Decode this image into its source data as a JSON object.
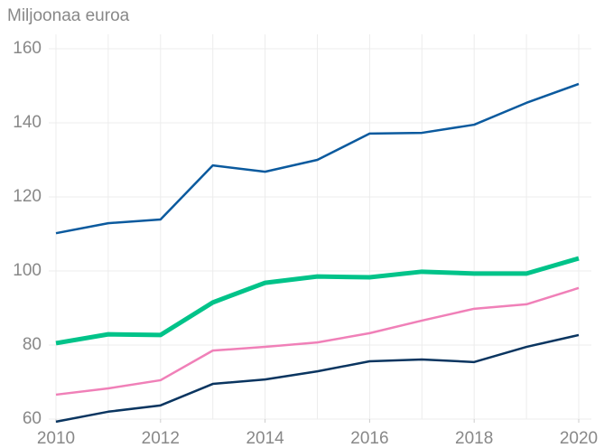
{
  "chart_data": {
    "type": "line",
    "ylabel": "Miljoonaa euroa",
    "x": [
      2010,
      2011,
      2012,
      2013,
      2014,
      2015,
      2016,
      2017,
      2018,
      2019,
      2020
    ],
    "series": [
      {
        "color": "#0b5a9e",
        "width": 2.5,
        "values": [
          110.2,
          112.9,
          113.9,
          128.5,
          126.8,
          130,
          137.1,
          137.3,
          139.5,
          145.4,
          150.5
        ]
      },
      {
        "color": "#00c389",
        "width": 5,
        "values": [
          80.5,
          82.9,
          82.7,
          91.5,
          96.8,
          98.5,
          98.3,
          99.8,
          99.3,
          99.3,
          103.4
        ]
      },
      {
        "color": "#f080b8",
        "width": 2.5,
        "values": [
          66.6,
          68.3,
          70.5,
          78.5,
          79.5,
          80.7,
          83.2,
          86.6,
          89.8,
          91,
          95.4
        ]
      },
      {
        "color": "#0a3560",
        "width": 2.5,
        "values": [
          59.3,
          62,
          63.7,
          69.5,
          70.7,
          72.9,
          75.6,
          76.1,
          75.4,
          79.5,
          82.7
        ]
      }
    ],
    "xlim": [
      2010,
      2020
    ],
    "xticks": [
      2010,
      2012,
      2014,
      2016,
      2018,
      2020
    ],
    "ylim": [
      60,
      160
    ],
    "yticks": [
      60,
      80,
      100,
      120,
      140,
      160
    ],
    "grid": true
  }
}
